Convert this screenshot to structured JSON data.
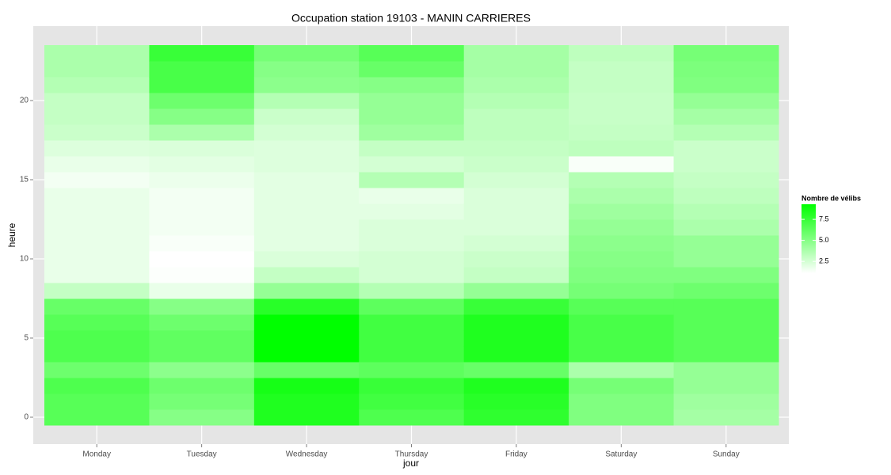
{
  "chart_data": {
    "type": "heatmap",
    "title": "Occupation station 19103 - MANIN CARRIERES",
    "x_label": "jour",
    "y_label": "heure",
    "categories": [
      "Monday",
      "Tuesday",
      "Wednesday",
      "Thursday",
      "Friday",
      "Saturday",
      "Sunday"
    ],
    "y": [
      0,
      1,
      2,
      3,
      4,
      5,
      6,
      7,
      8,
      9,
      10,
      11,
      12,
      13,
      14,
      15,
      16,
      17,
      18,
      19,
      20,
      21,
      22,
      23
    ],
    "values": [
      [
        6.5,
        6.5,
        6.8,
        5.8,
        6.8,
        6.8,
        6.5,
        6,
        3,
        1.8,
        1.8,
        1.8,
        1.8,
        1.8,
        1.8,
        1.5,
        1.8,
        2.2,
        2.8,
        3,
        3,
        3.5,
        3.8,
        3.8
      ],
      [
        5,
        5.5,
        5.8,
        4.8,
        6.2,
        6.2,
        5.8,
        5,
        1.8,
        1.2,
        1.1,
        1.3,
        1.5,
        1.5,
        1.5,
        1.7,
        2,
        2.3,
        3.8,
        5,
        5.8,
        7,
        7,
        7.5
      ],
      [
        8.3,
        8.3,
        8.6,
        6,
        9.3,
        9.3,
        9.3,
        8,
        4.5,
        3,
        2.3,
        2,
        2,
        2,
        2,
        2,
        2.2,
        2.2,
        2.5,
        2.8,
        3.5,
        4.8,
        5,
        5.5
      ],
      [
        6.8,
        7.2,
        7.5,
        6.3,
        7.2,
        7.2,
        7.2,
        6.3,
        3.5,
        2.5,
        2.5,
        2.3,
        2.3,
        2,
        1.8,
        3.5,
        2.5,
        3,
        4.2,
        4.5,
        4.5,
        5,
        6,
        6.5
      ],
      [
        7.8,
        8,
        8.3,
        6,
        8.3,
        8.3,
        8.3,
        7.5,
        4.5,
        3,
        2.8,
        2.5,
        2.3,
        2.3,
        2.3,
        2.5,
        2.8,
        3,
        3.2,
        3.2,
        3.5,
        3.8,
        4,
        4
      ],
      [
        5.2,
        5.2,
        5.5,
        3.8,
        7,
        7,
        7,
        6.5,
        5.5,
        5.2,
        5,
        4.8,
        4.5,
        4.2,
        3.8,
        3.5,
        1.3,
        3.2,
        3,
        2.9,
        2.9,
        3,
        3,
        3.2
      ],
      [
        4,
        4.2,
        4.5,
        4.5,
        6.5,
        6.5,
        6.5,
        6.5,
        5.8,
        5.2,
        4.5,
        4.5,
        3.8,
        3.5,
        3.2,
        3,
        2.8,
        2.8,
        3.5,
        4,
        4.5,
        5.2,
        5.3,
        5.5
      ]
    ],
    "ylim": [
      -0.5,
      23.5
    ],
    "yticks": [
      0,
      5,
      10,
      15,
      20
    ],
    "grid": true,
    "colorbar": {
      "title": "Nombre de vélibs",
      "limits": [
        1.1,
        9.3
      ],
      "low": "#ffffff",
      "high": "#00ff00",
      "ticks": [
        2.5,
        {
          "value": 5,
          "label": "5.0"
        },
        7.5
      ]
    }
  }
}
